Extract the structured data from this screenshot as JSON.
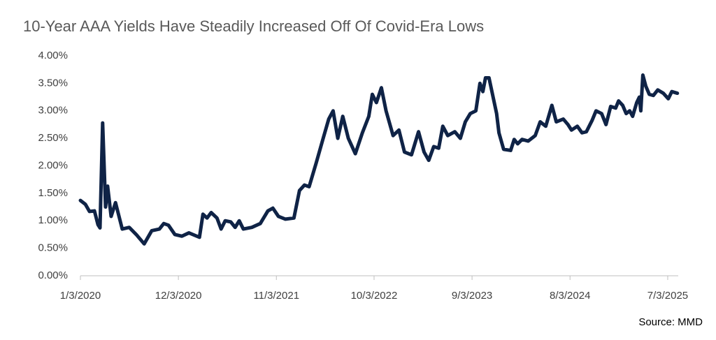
{
  "chart_data": {
    "type": "line",
    "title": "10-Year AAA Yields Have Steadily Increased Off Of Covid-Era Lows",
    "source": "Source: MMD",
    "color": "#0f2346",
    "x": [
      "1/3/2020",
      "1/20/2020",
      "2/3/2020",
      "2/20/2020",
      "3/3/2020",
      "3/10/2020",
      "3/19/2020",
      "3/29/2020",
      "4/5/2020",
      "4/17/2020",
      "5/2/2020",
      "5/25/2020",
      "6/18/2020",
      "7/12/2020",
      "8/8/2020",
      "9/3/2020",
      "9/29/2020",
      "10/14/2020",
      "10/30/2020",
      "11/21/2020",
      "12/15/2020",
      "1/8/2021",
      "2/13/2021",
      "2/25/2021",
      "3/11/2021",
      "3/25/2021",
      "4/14/2021",
      "4/28/2021",
      "5/12/2021",
      "5/31/2021",
      "6/15/2021",
      "6/29/2021",
      "7/13/2021",
      "8/11/2021",
      "9/9/2021",
      "10/5/2021",
      "10/22/2021",
      "11/10/2021",
      "12/4/2021",
      "1/2/2022",
      "1/21/2022",
      "2/7/2022",
      "2/23/2022",
      "3/19/2022",
      "4/12/2022",
      "5/1/2022",
      "5/16/2022",
      "6/1/2022",
      "6/18/2022",
      "7/7/2022",
      "7/31/2022",
      "8/24/2022",
      "9/15/2022",
      "9/27/2022",
      "10/11/2022",
      "10/28/2022",
      "11/13/2022",
      "12/7/2022",
      "12/27/2022",
      "1/15/2023",
      "2/8/2023",
      "3/4/2023",
      "3/23/2023",
      "4/8/2023",
      "4/25/2023",
      "5/12/2023",
      "5/26/2023",
      "6/12/2023",
      "7/6/2023",
      "7/25/2023",
      "8/11/2023",
      "8/28/2023",
      "9/16/2023",
      "9/30/2023",
      "10/10/2023",
      "10/19/2023",
      "10/31/2023",
      "11/12/2023",
      "11/26/2023",
      "12/4/2023",
      "12/20/2023",
      "1/13/2024",
      "1/25/2024",
      "2/6/2024",
      "2/21/2024",
      "3/13/2024",
      "4/6/2024",
      "4/23/2024",
      "5/12/2024",
      "6/2/2024",
      "6/17/2024",
      "7/11/2024",
      "7/27/2024",
      "8/8/2024",
      "8/28/2024",
      "9/13/2024",
      "9/28/2024",
      "10/17/2024",
      "10/31/2024",
      "11/19/2024",
      "12/4/2024",
      "12/20/2024",
      "1/6/2025",
      "1/16/2025",
      "1/30/2025",
      "2/11/2025",
      "2/23/2025",
      "3/5/2025",
      "3/19/2025",
      "3/28/2025",
      "4/2/2025",
      "4/9/2025",
      "4/19/2025",
      "5/1/2025",
      "5/15/2025",
      "5/30/2025",
      "6/18/2025",
      "7/5/2025",
      "7/17/2025",
      "8/5/2025"
    ],
    "values": [
      1.37,
      1.3,
      1.17,
      1.18,
      0.93,
      0.87,
      2.78,
      1.25,
      1.63,
      1.08,
      1.33,
      0.85,
      0.88,
      0.75,
      0.58,
      0.82,
      0.85,
      0.95,
      0.92,
      0.75,
      0.72,
      0.78,
      0.7,
      1.12,
      1.05,
      1.15,
      1.05,
      0.85,
      1.0,
      0.98,
      0.88,
      1.0,
      0.85,
      0.88,
      0.95,
      1.18,
      1.23,
      1.08,
      1.03,
      1.05,
      1.55,
      1.65,
      1.62,
      2.05,
      2.5,
      2.85,
      3.0,
      2.5,
      2.9,
      2.5,
      2.22,
      2.6,
      2.9,
      3.3,
      3.15,
      3.42,
      3.0,
      2.55,
      2.65,
      2.25,
      2.2,
      2.62,
      2.25,
      2.1,
      2.35,
      2.32,
      2.72,
      2.55,
      2.62,
      2.5,
      2.8,
      2.95,
      3.0,
      3.5,
      3.35,
      3.6,
      3.6,
      3.3,
      2.95,
      2.6,
      2.3,
      2.28,
      2.48,
      2.4,
      2.48,
      2.45,
      2.55,
      2.8,
      2.72,
      3.1,
      2.8,
      2.85,
      2.75,
      2.65,
      2.72,
      2.6,
      2.62,
      2.82,
      3.0,
      2.95,
      2.75,
      3.08,
      3.05,
      3.18,
      3.1,
      2.95,
      3.0,
      2.9,
      3.15,
      3.25,
      3.0,
      3.65,
      3.45,
      3.3,
      3.28,
      3.38,
      3.32,
      3.22,
      3.35,
      3.32
    ],
    "xlim": [
      "1/3/2020",
      "8/8/2025"
    ],
    "xticks": [
      "1/3/2020",
      "12/3/2020",
      "11/3/2021",
      "10/3/2022",
      "9/3/2023",
      "8/3/2024",
      "7/3/2025"
    ],
    "ylim": [
      0,
      4
    ],
    "yticks": [
      {
        "value": 0,
        "label": "0.00%"
      },
      {
        "value": 0.5,
        "label": "0.50%"
      },
      {
        "value": 1,
        "label": "1.00%"
      },
      {
        "value": 1.5,
        "label": "1.50%"
      },
      {
        "value": 2,
        "label": "2.00%"
      },
      {
        "value": 2.5,
        "label": "2.50%"
      },
      {
        "value": 3,
        "label": "3.00%"
      },
      {
        "value": 3.5,
        "label": "3.50%"
      },
      {
        "value": 4,
        "label": "4.00%"
      }
    ],
    "grid": false
  }
}
